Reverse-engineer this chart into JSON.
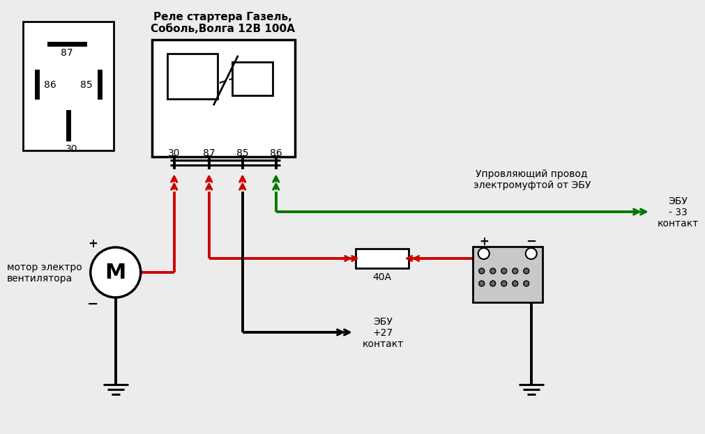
{
  "bg_color": "#ececec",
  "title_relay": "Реле стартера Газель,\nСоболь,Волга 12В 100А",
  "label_30": "30",
  "label_87": "87",
  "label_85": "85",
  "label_86": "86",
  "motor_label": "мотор электро\nвентилятора",
  "ebu_27": "ЭБУ\n+27\nконтакт",
  "ebu_33": "ЭБУ\n- 33\nконтакт",
  "ctrl_wire_label": "Упровляющий провод\nэлектромуфтой от ЭБУ",
  "fuse_label": "40А",
  "color_red": "#cc0000",
  "color_green": "#007700",
  "color_black": "#000000",
  "color_white": "#ffffff",
  "color_gray": "#aaaaaa",
  "color_dark_gray": "#666666"
}
